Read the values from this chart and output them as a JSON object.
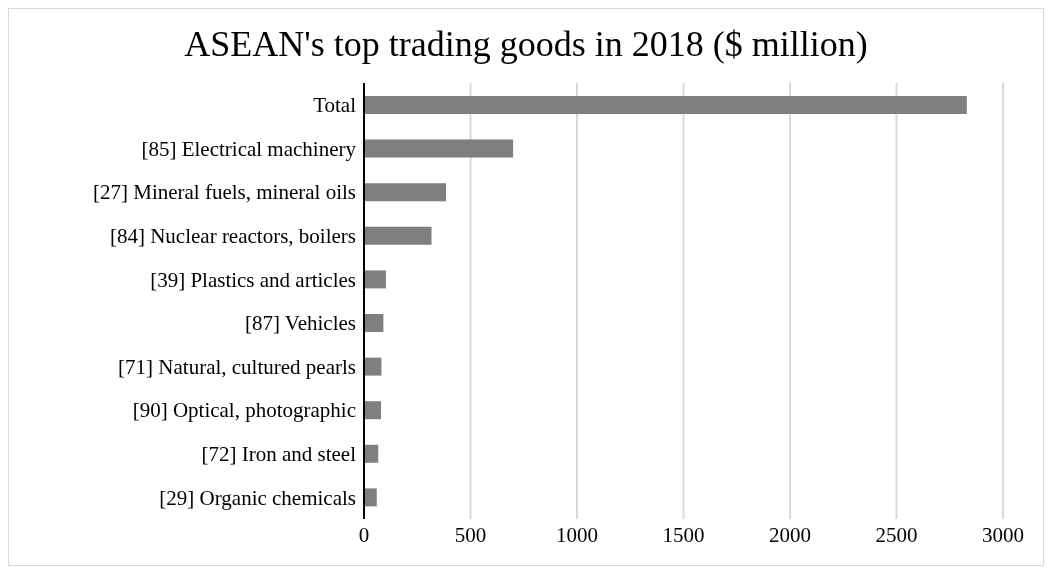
{
  "chart_data": {
    "type": "bar",
    "orientation": "horizontal",
    "title": "ASEAN's top trading goods in 2018 ($ million)",
    "categories": [
      "Total",
      "[85] Electrical machinery",
      "[27] Mineral fuels, mineral oils",
      "[84] Nuclear reactors, boilers",
      "[39] Plastics and articles",
      "[87] Vehicles",
      "[71] Natural, cultured pearls",
      "[90] Optical, photographic",
      "[72] Iron and steel",
      "[29] Organic chemicals"
    ],
    "values": [
      2830,
      700,
      385,
      317,
      103,
      91,
      82,
      80,
      67,
      60
    ],
    "color": "#7f7f7f",
    "xlim": [
      0,
      3000
    ],
    "xticks": [
      0,
      500,
      1000,
      1500,
      2000,
      2500,
      3000
    ],
    "grid": "x"
  }
}
